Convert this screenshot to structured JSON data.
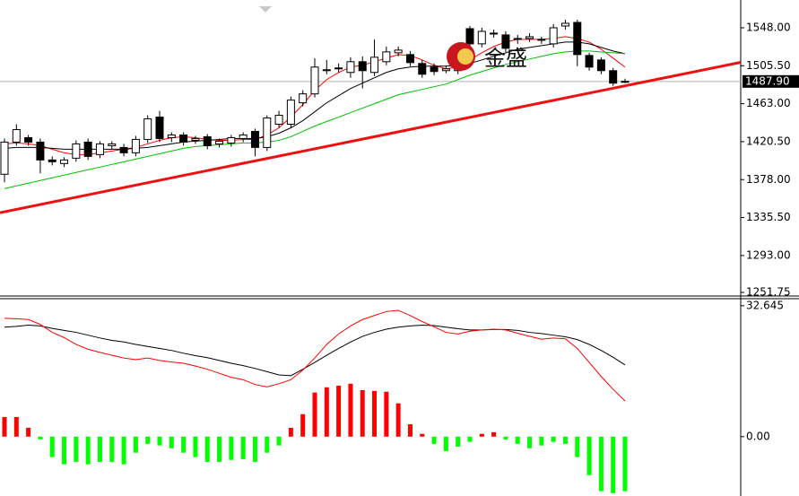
{
  "chart_data": [
    {
      "type": "candlestick",
      "watermark": "金盛",
      "open": [
        1384,
        1420,
        1425,
        1420,
        1400,
        1396,
        1402,
        1420,
        1406,
        1416,
        1414,
        1408,
        1423,
        1448,
        1425,
        1428,
        1422,
        1426,
        1418,
        1419,
        1424,
        1432,
        1414,
        1440,
        1440,
        1464,
        1474,
        1500,
        1502,
        1498,
        1510,
        1498,
        1510,
        1520,
        1518,
        1508,
        1504,
        1500,
        1500,
        1547,
        1530,
        1542,
        1540,
        1535,
        1536,
        1534,
        1530,
        1550,
        1554,
        1517,
        1512,
        1500,
        1488
      ],
      "high": [
        1424,
        1440,
        1428,
        1424,
        1404,
        1403,
        1422,
        1424,
        1421,
        1421,
        1418,
        1427,
        1450,
        1455,
        1431,
        1431,
        1427,
        1429,
        1424,
        1428,
        1431,
        1435,
        1450,
        1455,
        1471,
        1478,
        1514,
        1512,
        1508,
        1515,
        1516,
        1535,
        1527,
        1527,
        1522,
        1512,
        1508,
        1506,
        1526,
        1550,
        1548,
        1546,
        1544,
        1540,
        1542,
        1538,
        1552,
        1557,
        1557,
        1520,
        1515,
        1503,
        1491
      ],
      "low": [
        1375,
        1416,
        1416,
        1385,
        1394,
        1392,
        1398,
        1400,
        1402,
        1412,
        1404,
        1404,
        1419,
        1420,
        1420,
        1416,
        1418,
        1412,
        1414,
        1415,
        1420,
        1404,
        1410,
        1436,
        1436,
        1460,
        1470,
        1496,
        1498,
        1492,
        1480,
        1494,
        1506,
        1516,
        1505,
        1492,
        1495,
        1497,
        1496,
        1526,
        1526,
        1537,
        1521,
        1530,
        1532,
        1530,
        1526,
        1546,
        1505,
        1500,
        1496,
        1483,
        1486
      ],
      "close": [
        1420,
        1434,
        1420,
        1400,
        1398,
        1400,
        1418,
        1404,
        1418,
        1418,
        1408,
        1423,
        1446,
        1424,
        1428,
        1420,
        1424,
        1416,
        1421,
        1425,
        1428,
        1414,
        1447,
        1450,
        1467,
        1474,
        1504,
        1501,
        1503,
        1510,
        1500,
        1515,
        1521,
        1523,
        1509,
        1496,
        1499,
        1502,
        1522,
        1530,
        1544,
        1541,
        1525,
        1536,
        1538,
        1535,
        1548,
        1553,
        1518,
        1504,
        1500,
        1486,
        1487.9
      ],
      "up_color": "#ffffff",
      "down_color": "#000000",
      "outline_color": "#000000",
      "series": [
        {
          "color": "#ff0000",
          "values": [
            1418,
            1419,
            1418,
            1416,
            1412,
            1408,
            1406,
            1406,
            1408,
            1410,
            1412,
            1414,
            1418,
            1422,
            1425,
            1426,
            1425,
            1423,
            1422,
            1422,
            1423,
            1423,
            1428,
            1436,
            1448,
            1462,
            1478,
            1490,
            1498,
            1504,
            1506,
            1510,
            1514,
            1518,
            1517,
            1512,
            1506,
            1502,
            1504,
            1512,
            1520,
            1527,
            1532,
            1535,
            1535,
            1535,
            1536,
            1538,
            1536,
            1532,
            1524,
            1514,
            1504
          ]
        },
        {
          "color": "#000000",
          "values": [
            1413,
            1414,
            1414,
            1414,
            1413,
            1412,
            1412,
            1412,
            1412,
            1412,
            1412,
            1413,
            1414,
            1416,
            1418,
            1420,
            1421,
            1422,
            1423,
            1424,
            1424,
            1424,
            1426,
            1430,
            1436,
            1444,
            1454,
            1464,
            1472,
            1480,
            1486,
            1492,
            1498,
            1502,
            1504,
            1505,
            1505,
            1505,
            1506,
            1508,
            1512,
            1516,
            1520,
            1524,
            1526,
            1528,
            1530,
            1532,
            1532,
            1530,
            1526,
            1522,
            1519
          ]
        },
        {
          "color": "#00c000",
          "values": [
            1368,
            1371,
            1374,
            1377,
            1380,
            1383,
            1386,
            1389,
            1392,
            1395,
            1398,
            1401,
            1404,
            1407,
            1410,
            1413,
            1415,
            1416,
            1417,
            1418,
            1419,
            1419,
            1420,
            1422,
            1426,
            1432,
            1438,
            1443,
            1448,
            1453,
            1458,
            1463,
            1468,
            1473,
            1476,
            1479,
            1482,
            1485,
            1490,
            1495,
            1499,
            1503,
            1507,
            1510,
            1513,
            1516,
            1519,
            1521,
            1522,
            1522,
            1521,
            1520,
            1519
          ]
        }
      ],
      "trendline": {
        "color": "#ee1111",
        "x": [
          0,
          52
        ],
        "values": [
          1342,
          1483
        ]
      },
      "last_price": {
        "value": 1487.9,
        "label": "1487.90"
      },
      "ylim": [
        1247.7,
        1579.1
      ],
      "yticks": [
        {
          "value": 1548,
          "label": "1548.00"
        },
        {
          "value": 1505.5,
          "label": "1505.50"
        },
        {
          "value": 1463,
          "label": "1463.00"
        },
        {
          "value": 1420.5,
          "label": "1420.50"
        },
        {
          "value": 1378,
          "label": "1378.00"
        },
        {
          "value": 1335.5,
          "label": "1335.50"
        },
        {
          "value": 1293,
          "label": "1293.00"
        },
        {
          "value": 1251.75,
          "label": "1251.75"
        }
      ]
    },
    {
      "type": "macd",
      "histogram": [
        4.9,
        4.9,
        2.2,
        -0.7,
        -5.1,
        -6.9,
        -6.3,
        -6.9,
        -6.3,
        -6.3,
        -6.9,
        -4.0,
        -1.8,
        -2.2,
        -2.9,
        -4.0,
        -5.1,
        -6.3,
        -6.3,
        -5.8,
        -5.6,
        -6.3,
        -4.0,
        -2.2,
        2.2,
        5.6,
        11.0,
        12.3,
        12.7,
        13.2,
        11.6,
        11.4,
        11.2,
        8.3,
        3.1,
        0.7,
        -1.8,
        -3.6,
        -2.5,
        -1.3,
        0.7,
        1.1,
        -0.7,
        -1.8,
        -2.9,
        -2.2,
        -1.3,
        -1.8,
        -5.1,
        -9.6,
        -13.6,
        -14.1,
        -13.6
      ],
      "pos_color": "#ff0000",
      "neg_color": "#00ff00",
      "series": [
        {
          "color": "#000000",
          "values": [
            27.3,
            27.5,
            27.8,
            27.6,
            27.0,
            26.5,
            26.0,
            25.3,
            24.6,
            24.0,
            23.6,
            23.0,
            22.5,
            22.0,
            21.5,
            20.8,
            20.2,
            19.7,
            19.0,
            18.3,
            17.7,
            17.0,
            16.2,
            15.4,
            15.2,
            16.8,
            18.5,
            20.3,
            22.0,
            23.6,
            25.0,
            26.0,
            26.8,
            27.3,
            27.6,
            27.8,
            27.7,
            27.3,
            26.9,
            26.6,
            26.6,
            26.7,
            26.7,
            26.5,
            26.0,
            25.7,
            25.3,
            24.9,
            24.2,
            23.0,
            21.5,
            19.8,
            17.9
          ]
        },
        {
          "color": "#ff0000",
          "values": [
            29.5,
            29.4,
            29.2,
            28.0,
            26.0,
            24.7,
            23.0,
            21.8,
            21.0,
            20.3,
            19.6,
            19.2,
            19.6,
            19.0,
            18.6,
            18.3,
            17.6,
            16.8,
            15.8,
            14.8,
            14.2,
            13.0,
            12.4,
            13.2,
            14.2,
            16.6,
            19.6,
            23.0,
            25.6,
            27.6,
            29.2,
            30.2,
            31.2,
            31.5,
            30.2,
            28.7,
            27.4,
            26.0,
            25.6,
            26.3,
            26.6,
            26.8,
            26.6,
            25.8,
            25.0,
            24.3,
            24.6,
            24.4,
            22.0,
            18.5,
            15.0,
            11.8,
            8.9
          ]
        }
      ],
      "ylim": [
        -14.8,
        34.4
      ],
      "yticks": [
        32.645,
        {
          "value": 0,
          "label": "0.00"
        }
      ]
    }
  ]
}
